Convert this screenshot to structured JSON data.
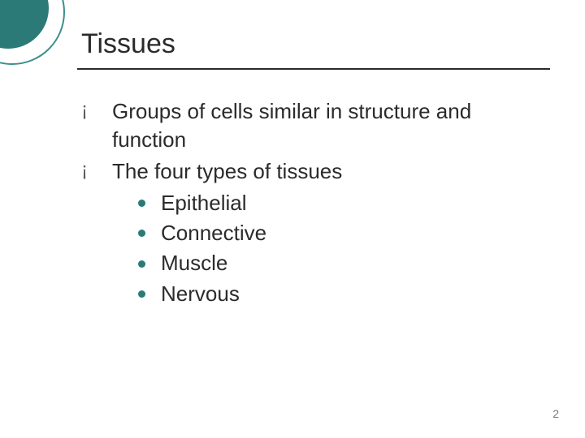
{
  "colors": {
    "accent": "#2b7a78",
    "accent_light": "#3a8f8c",
    "text": "#2b2b2b",
    "underline": "#2b2b2b",
    "bullet_open": "#5a5a5a",
    "sub_dot": "#2b7a78",
    "page_num": "#7a7a7a",
    "background": "#ffffff"
  },
  "title": "Tissues",
  "bullets": [
    {
      "text": "Groups of cells similar in structure and function"
    },
    {
      "text": "The four types of tissues"
    }
  ],
  "sub_bullets": [
    "Epithelial",
    "Connective",
    "Muscle",
    "Nervous"
  ],
  "page_number": "2",
  "typography": {
    "title_fontsize": 34,
    "body_fontsize": 26,
    "page_num_fontsize": 14,
    "font_family": "Verdana"
  }
}
